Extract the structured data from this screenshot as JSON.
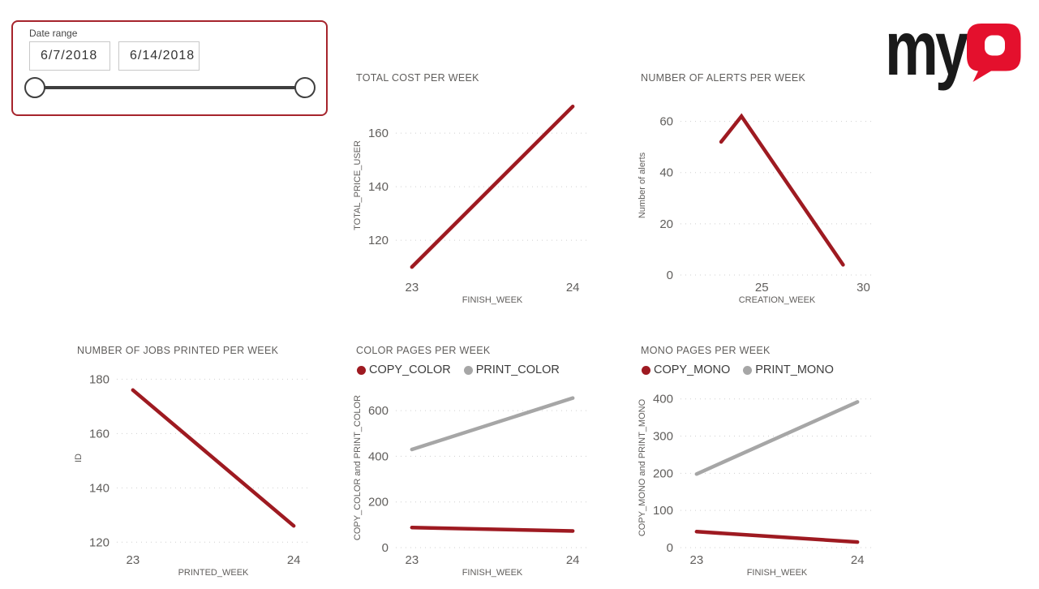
{
  "slicer": {
    "label": "Date range",
    "start_date": "6/7/2018",
    "end_date": "6/14/2018"
  },
  "logo": {
    "black_text": "my",
    "red_letter": "Q",
    "black_color": "#1a1a1a",
    "red_color": "#e4102d"
  },
  "colors": {
    "series_red": "#9e1a21",
    "series_gray": "#a6a6a6",
    "axis_text": "#605e5c",
    "legend_text": "#3d3d3d",
    "gridline": "#cfcfcf",
    "slicer_border": "#a6242c",
    "slider": "#3f3f3f"
  },
  "chart_data": [
    {
      "type": "line",
      "title": "TOTAL COST PER WEEK",
      "xlabel": "FINISH_WEEK",
      "ylabel": "TOTAL_PRICE_USER",
      "x_ticks": [
        23,
        24
      ],
      "y_ticks": [
        120,
        140,
        160
      ],
      "xlim": [
        22.9,
        24.1
      ],
      "ylim": [
        107,
        174
      ],
      "grid": "dotted-horizontal",
      "legend": false,
      "series": [
        {
          "name": "TOTAL_PRICE_USER",
          "color": "#9e1a21",
          "points": [
            [
              23,
              110
            ],
            [
              24,
              170
            ]
          ]
        }
      ]
    },
    {
      "type": "line",
      "title": "NUMBER OF ALERTS PER WEEK",
      "xlabel": "CREATION_WEEK",
      "ylabel": "Number of alerts",
      "x_ticks": [
        25,
        30
      ],
      "y_ticks": [
        0,
        20,
        40,
        60
      ],
      "xlim": [
        21,
        30.5
      ],
      "ylim": [
        0,
        70
      ],
      "grid": "dotted-horizontal",
      "legend": false,
      "series": [
        {
          "name": "Number of alerts",
          "color": "#9e1a21",
          "points": [
            [
              23,
              52
            ],
            [
              24,
              62
            ],
            [
              29,
              4
            ]
          ]
        }
      ]
    },
    {
      "type": "line",
      "title": "NUMBER OF JOBS PRINTED PER WEEK",
      "xlabel": "PRINTED_WEEK",
      "ylabel": "ID",
      "x_ticks": [
        23,
        24
      ],
      "y_ticks": [
        120,
        140,
        160,
        180
      ],
      "xlim": [
        22.9,
        24.1
      ],
      "ylim": [
        118,
        184
      ],
      "grid": "dotted-horizontal",
      "legend": false,
      "series": [
        {
          "name": "ID",
          "color": "#9e1a21",
          "points": [
            [
              23,
              176
            ],
            [
              24,
              126
            ]
          ]
        }
      ]
    },
    {
      "type": "line",
      "title": "COLOR PAGES PER WEEK",
      "xlabel": "FINISH_WEEK",
      "ylabel": "COPY_COLOR and PRINT_COLOR",
      "x_ticks": [
        23,
        24
      ],
      "y_ticks": [
        0,
        200,
        400,
        600
      ],
      "xlim": [
        22.9,
        24.1
      ],
      "ylim": [
        0,
        700
      ],
      "grid": "dotted-horizontal",
      "legend": true,
      "legend_position": "top",
      "series": [
        {
          "name": "COPY_COLOR",
          "color": "#9e1a21",
          "points": [
            [
              23,
              88
            ],
            [
              24,
              73
            ]
          ]
        },
        {
          "name": "PRINT_COLOR",
          "color": "#a6a6a6",
          "points": [
            [
              23,
              430
            ],
            [
              24,
              655
            ]
          ]
        }
      ]
    },
    {
      "type": "line",
      "title": "MONO PAGES PER WEEK",
      "xlabel": "FINISH_WEEK",
      "ylabel": "COPY_MONO and PRINT_MONO",
      "x_ticks": [
        23,
        24
      ],
      "y_ticks": [
        0,
        100,
        200,
        300,
        400
      ],
      "xlim": [
        22.9,
        24.1
      ],
      "ylim": [
        0,
        430
      ],
      "grid": "dotted-horizontal",
      "legend": true,
      "legend_position": "top",
      "series": [
        {
          "name": "COPY_MONO",
          "color": "#9e1a21",
          "points": [
            [
              23,
              43
            ],
            [
              24,
              15
            ]
          ]
        },
        {
          "name": "PRINT_MONO",
          "color": "#a6a6a6",
          "points": [
            [
              23,
              198
            ],
            [
              24,
              392
            ]
          ]
        }
      ]
    }
  ]
}
